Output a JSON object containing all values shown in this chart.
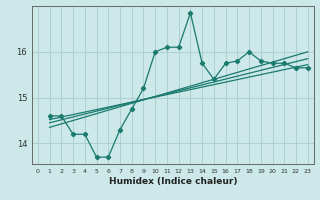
{
  "xlabel": "Humidex (Indice chaleur)",
  "bg_color": "#cce8e8",
  "line_color": "#1a7a6e",
  "grid_color": "#aacccc",
  "xlim": [
    -0.5,
    23.5
  ],
  "ylim": [
    13.55,
    17.0
  ],
  "yticks": [
    14,
    15,
    16
  ],
  "xticks": [
    0,
    1,
    2,
    3,
    4,
    5,
    6,
    7,
    8,
    9,
    10,
    11,
    12,
    13,
    14,
    15,
    16,
    17,
    18,
    19,
    20,
    21,
    22,
    23
  ],
  "series1_x": [
    1,
    2,
    3,
    4,
    5,
    6,
    7,
    8,
    9,
    10,
    11,
    12,
    13,
    14,
    15,
    16,
    17,
    18,
    19,
    20,
    21,
    22,
    23
  ],
  "series1_y": [
    14.6,
    14.6,
    14.2,
    14.2,
    13.7,
    13.7,
    14.3,
    14.75,
    15.2,
    16.0,
    16.1,
    16.1,
    16.85,
    15.75,
    15.4,
    15.75,
    15.8,
    16.0,
    15.8,
    15.75,
    15.75,
    15.65,
    15.65
  ],
  "trend1_x": [
    1,
    23
  ],
  "trend1_y": [
    14.45,
    15.85
  ],
  "trend2_x": [
    1,
    23
  ],
  "trend2_y": [
    14.35,
    16.0
  ],
  "trend3_x": [
    1,
    23
  ],
  "trend3_y": [
    14.52,
    15.72
  ]
}
